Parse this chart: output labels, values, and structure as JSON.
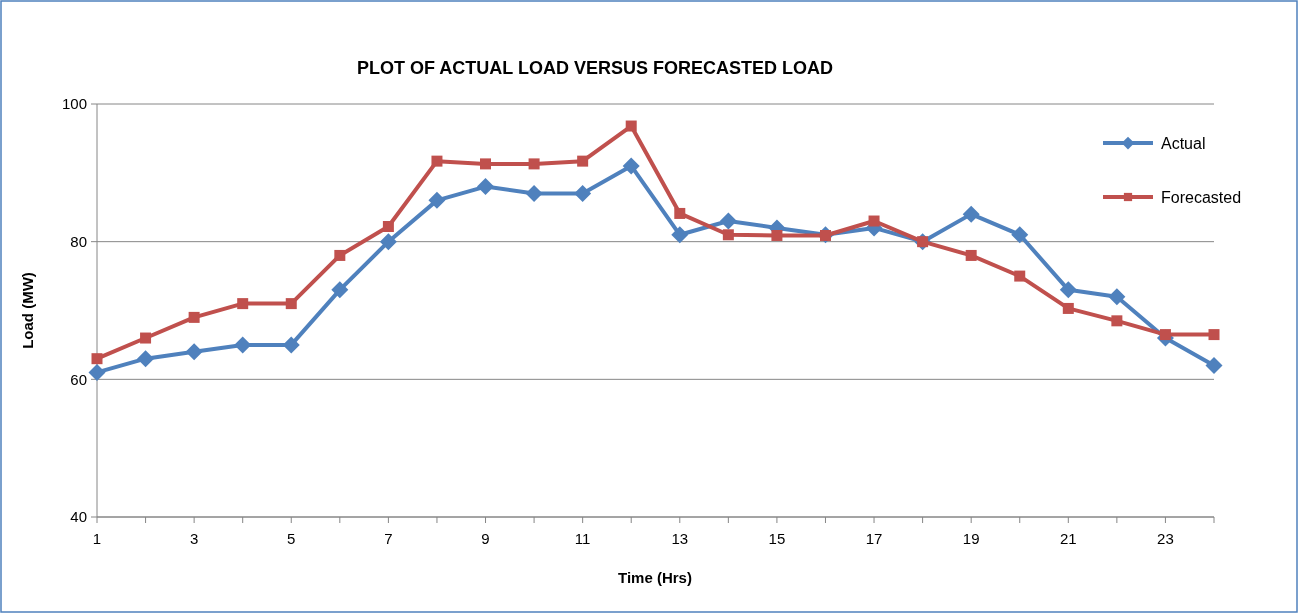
{
  "chart_data": {
    "type": "line",
    "title": "PLOT OF ACTUAL LOAD VERSUS FORECASTED LOAD",
    "xlabel": "Time (Hrs)",
    "ylabel": "Load (MW)",
    "x": [
      1,
      2,
      3,
      4,
      5,
      6,
      7,
      8,
      9,
      10,
      11,
      12,
      13,
      14,
      15,
      16,
      17,
      18,
      19,
      20,
      21,
      22,
      23,
      24
    ],
    "xlim": [
      1,
      24
    ],
    "xticks": [
      1,
      {
        "value": 2,
        "label": null
      },
      3,
      {
        "value": 4,
        "label": null
      },
      5,
      {
        "value": 6,
        "label": null
      },
      7,
      {
        "value": 8,
        "label": null
      },
      9,
      {
        "value": 10,
        "label": null
      },
      11,
      {
        "value": 12,
        "label": null
      },
      13,
      {
        "value": 14,
        "label": null
      },
      15,
      {
        "value": 16,
        "label": null
      },
      17,
      {
        "value": 18,
        "label": null
      },
      19,
      {
        "value": 20,
        "label": null
      },
      21,
      {
        "value": 22,
        "label": null
      },
      23,
      {
        "value": 24,
        "label": null
      }
    ],
    "ylim": [
      40,
      100
    ],
    "yticks": [
      40,
      60,
      80,
      100
    ],
    "grid": "y",
    "legend": "right",
    "series": [
      {
        "name": "Actual",
        "color": "#4f81bd",
        "marker": "diamond",
        "values": [
          61,
          63,
          64,
          65,
          65,
          73,
          80,
          86,
          88,
          87,
          87,
          91,
          81,
          83,
          82,
          81,
          82,
          80,
          84,
          81,
          73,
          72,
          66,
          62
        ]
      },
      {
        "name": "Forecasted",
        "color": "#c0504d",
        "marker": "square",
        "values": [
          63,
          66,
          69,
          71,
          71,
          78,
          82.2,
          91.7,
          91.3,
          91.3,
          91.7,
          96.8,
          84.1,
          81,
          80.9,
          80.9,
          83,
          80,
          78,
          75,
          70.3,
          68.5,
          66.5,
          66.5
        ]
      }
    ]
  }
}
